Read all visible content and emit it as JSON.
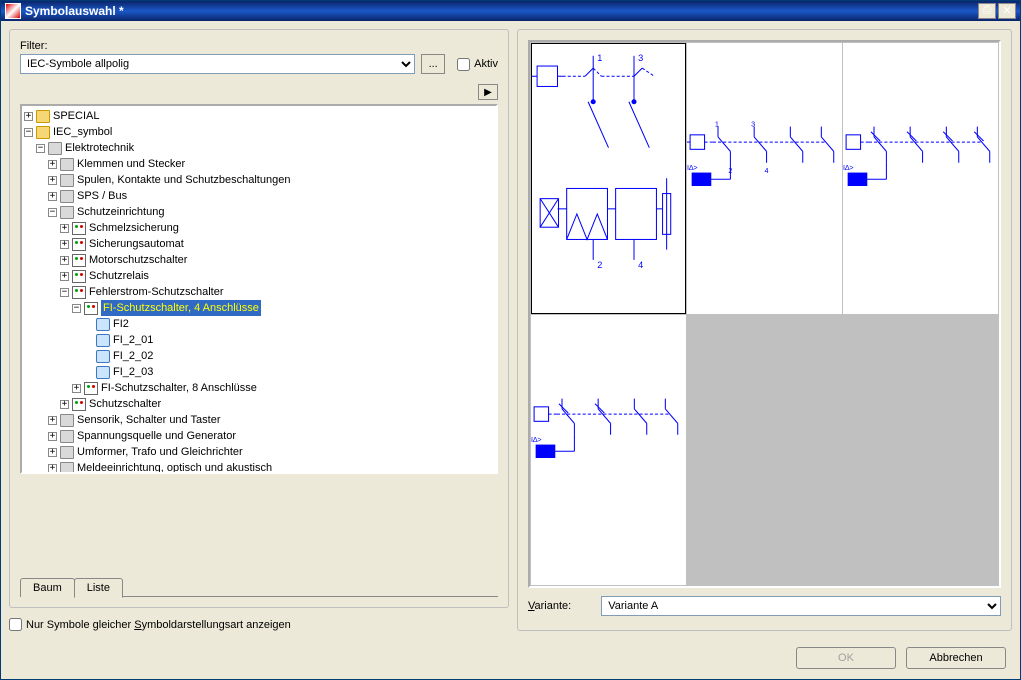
{
  "window": {
    "title": "Symbolauswahl *"
  },
  "filter": {
    "label": "Filter:",
    "value": "IEC-Symbole allpolig",
    "ellipsis": "...",
    "aktiv_label": "Aktiv",
    "aktiv_checked": false
  },
  "tree": {
    "nodes": [
      {
        "indent": 0,
        "toggle": "+",
        "icon": "folder-y",
        "label": "SPECIAL"
      },
      {
        "indent": 0,
        "toggle": "-",
        "icon": "folder-y",
        "label": "IEC_symbol"
      },
      {
        "indent": 1,
        "toggle": "-",
        "icon": "folder-g",
        "label": "Elektrotechnik"
      },
      {
        "indent": 2,
        "toggle": "+",
        "icon": "folder-g",
        "label": "Klemmen und Stecker"
      },
      {
        "indent": 2,
        "toggle": "+",
        "icon": "folder-g",
        "label": "Spulen, Kontakte und Schutzbeschaltungen"
      },
      {
        "indent": 2,
        "toggle": "+",
        "icon": "folder-g",
        "label": "SPS / Bus"
      },
      {
        "indent": 2,
        "toggle": "-",
        "icon": "folder-g",
        "label": "Schutzeinrichtung"
      },
      {
        "indent": 3,
        "toggle": "+",
        "icon": "sym-icon",
        "label": "Schmelzsicherung"
      },
      {
        "indent": 3,
        "toggle": "+",
        "icon": "sym-icon",
        "label": "Sicherungsautomat"
      },
      {
        "indent": 3,
        "toggle": "+",
        "icon": "sym-icon",
        "label": "Motorschutzschalter"
      },
      {
        "indent": 3,
        "toggle": "+",
        "icon": "sym-icon",
        "label": "Schutzrelais"
      },
      {
        "indent": 3,
        "toggle": "-",
        "icon": "sym-icon",
        "label": "Fehlerstrom-Schutzschalter"
      },
      {
        "indent": 4,
        "toggle": "-",
        "icon": "sym-icon",
        "label": "FI-Schutzschalter, 4 Anschlüsse",
        "selected": true
      },
      {
        "indent": 5,
        "toggle": "",
        "icon": "leaf-icon",
        "label": "FI2"
      },
      {
        "indent": 5,
        "toggle": "",
        "icon": "leaf-icon",
        "label": "FI_2_01"
      },
      {
        "indent": 5,
        "toggle": "",
        "icon": "leaf-icon",
        "label": "FI_2_02"
      },
      {
        "indent": 5,
        "toggle": "",
        "icon": "leaf-icon",
        "label": "FI_2_03"
      },
      {
        "indent": 4,
        "toggle": "+",
        "icon": "sym-icon",
        "label": "FI-Schutzschalter, 8 Anschlüsse"
      },
      {
        "indent": 3,
        "toggle": "+",
        "icon": "sym-icon",
        "label": "Schutzschalter"
      },
      {
        "indent": 2,
        "toggle": "+",
        "icon": "folder-g",
        "label": "Sensorik, Schalter und Taster"
      },
      {
        "indent": 2,
        "toggle": "+",
        "icon": "folder-g",
        "label": "Spannungsquelle und Generator"
      },
      {
        "indent": 2,
        "toggle": "+",
        "icon": "folder-g",
        "label": "Umformer, Trafo und Gleichrichter"
      },
      {
        "indent": 2,
        "toggle": "+",
        "icon": "folder-g",
        "label": "Meldeeinrichtung, optisch und akustisch"
      }
    ]
  },
  "tabs": {
    "baum": "Baum",
    "liste": "Liste",
    "active": "liste"
  },
  "option_check": {
    "label": "Nur Symbole gleicher Symboldarstellungsart anzeigen",
    "checked": false
  },
  "variant": {
    "label": "Variante:",
    "value": "Variante A"
  },
  "buttons": {
    "ok": "OK",
    "cancel": "Abbrechen"
  },
  "preview": {
    "cells": [
      {
        "filled": true,
        "selected": true,
        "variant": "A",
        "pins": [
          "1",
          "3",
          "2",
          "4"
        ]
      },
      {
        "filled": true,
        "selected": false,
        "variant": "B"
      },
      {
        "filled": true,
        "selected": false,
        "variant": "C"
      },
      {
        "filled": true,
        "selected": false,
        "variant": "D"
      },
      {
        "filled": false
      },
      {
        "filled": false
      }
    ],
    "colors": {
      "line": "#0000ff",
      "bg": "#ffffff"
    }
  }
}
